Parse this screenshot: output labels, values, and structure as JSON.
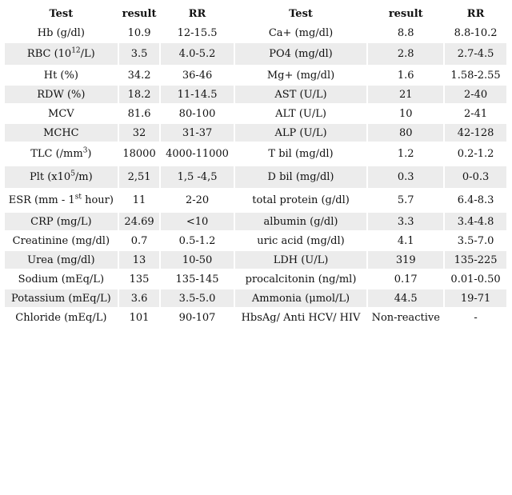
{
  "headers": {
    "test_left": "Test",
    "result_left": "result",
    "rr_left": "RR",
    "test_right": "Test",
    "result_right": "result",
    "rr_right": "RR"
  },
  "rows": [
    {
      "left": {
        "test": "Hb (g/dl)",
        "result": "10.9",
        "rr": "12-15.5"
      },
      "right": {
        "test": "Ca+ (mg/dl)",
        "result": "8.8",
        "rr": "8.8-10.2"
      }
    },
    {
      "left": {
        "test_pre": "RBC (10",
        "test_sup": "12",
        "test_post": "/L)",
        "result": "3.5",
        "rr": "4.0-5.2"
      },
      "right": {
        "test": "PO4 (mg/dl)",
        "result": "2.8",
        "rr": "2.7-4.5"
      }
    },
    {
      "left": {
        "test": "Ht (%)",
        "result": "34.2",
        "rr": "36-46"
      },
      "right": {
        "test": "Mg+ (mg/dl)",
        "result": "1.6",
        "rr": "1.58-2.55"
      }
    },
    {
      "left": {
        "test": "RDW (%)",
        "result": "18.2",
        "rr": "11-14.5"
      },
      "right": {
        "test": "AST (U/L)",
        "result": "21",
        "rr": "2-40"
      }
    },
    {
      "left": {
        "test": "MCV",
        "result": "81.6",
        "rr": "80-100"
      },
      "right": {
        "test": "ALT (U/L)",
        "result": "10",
        "rr": "2-41"
      }
    },
    {
      "left": {
        "test": "MCHC",
        "result": "32",
        "rr": "31-37"
      },
      "right": {
        "test": "ALP (U/L)",
        "result": "80",
        "rr": "42-128"
      }
    },
    {
      "left": {
        "test_pre": "TLC (/mm",
        "test_sup": "3",
        "test_post": ")",
        "result": "18000",
        "rr": "4000-11000"
      },
      "right": {
        "test": "T bil (mg/dl)",
        "result": "1.2",
        "rr": "0.2-1.2"
      }
    },
    {
      "left": {
        "test_pre": "Plt (x10",
        "test_sup": "5",
        "test_post": "/m)",
        "result": "2,51",
        "rr": "1,5 -4,5"
      },
      "right": {
        "test": "D bil (mg/dl)",
        "result": "0.3",
        "rr": "0-0.3"
      }
    },
    {
      "left": {
        "test_pre": "ESR (mm - 1",
        "test_sup": "st",
        "test_post": " hour)",
        "result": "11",
        "rr": "2-20"
      },
      "right": {
        "test": "total protein (g/dl)",
        "result": "5.7",
        "rr": "6.4-8.3"
      }
    },
    {
      "left": {
        "test": "CRP (mg/L)",
        "result": "24.69",
        "rr": "<10"
      },
      "right": {
        "test": "albumin (g/dl)",
        "result": "3.3",
        "rr": "3.4-4.8"
      }
    },
    {
      "left": {
        "test": "Creatinine (mg/dl)",
        "result": "0.7",
        "rr": "0.5-1.2"
      },
      "right": {
        "test": "uric acid (mg/dl)",
        "result": "4.1",
        "rr": "3.5-7.0"
      }
    },
    {
      "left": {
        "test": "Urea (mg/dl)",
        "result": "13",
        "rr": "10-50"
      },
      "right": {
        "test": "LDH (U/L)",
        "result": "319",
        "rr": "135-225"
      }
    },
    {
      "left": {
        "test": "Sodium (mEq/L)",
        "result": "135",
        "rr": "135-145"
      },
      "right": {
        "test": "procalcitonin (ng/ml)",
        "result": "0.17",
        "rr": "0.01-0.50"
      }
    },
    {
      "left": {
        "test": "Potassium (mEq/L)",
        "result": "3.6",
        "rr": "3.5-5.0"
      },
      "right": {
        "test": "Ammonia (μmol/L)",
        "result": "44.5",
        "rr": "19-71"
      }
    },
    {
      "left": {
        "test": "Chloride (mEq/L)",
        "result": "101",
        "rr": "90-107"
      },
      "right": {
        "test": "HbsAg/ Anti HCV/ HIV",
        "result": "Non-reactive",
        "rr": "-"
      }
    }
  ]
}
